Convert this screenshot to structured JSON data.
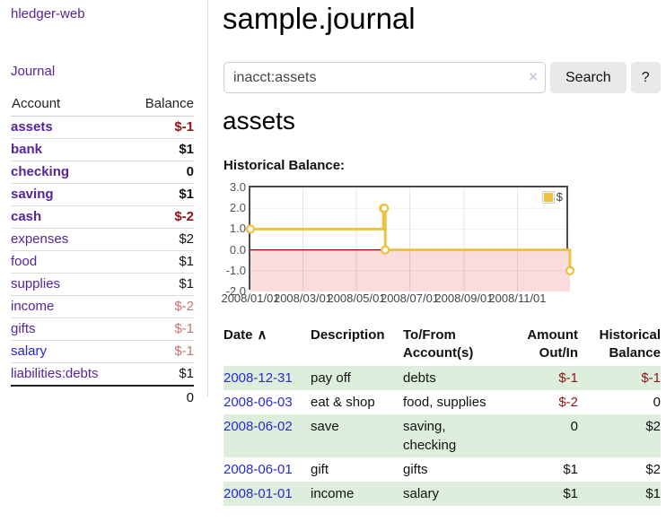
{
  "colors": {
    "link_purple": "#54259c",
    "link_blue": "#2323d9",
    "negative_strong": "#8b1515",
    "negative_muted": "#c87272",
    "row_green": "#ddeedd",
    "series_yellow": "#edc240",
    "negative_region_pink": "#fbdcdc",
    "zero_line_red": "#a40000"
  },
  "sidebar": {
    "brand": "hledger-web",
    "nav": {
      "journal": "Journal"
    },
    "table": {
      "account_header": "Account",
      "balance_header": "Balance",
      "rows": [
        {
          "account": "assets",
          "balance": "$-1"
        },
        {
          "account": "bank",
          "balance": "$1"
        },
        {
          "account": "checking",
          "balance": "0"
        },
        {
          "account": "saving",
          "balance": "$1"
        },
        {
          "account": "cash",
          "balance": "$-2"
        },
        {
          "account": "expenses",
          "balance": "$2"
        },
        {
          "account": "food",
          "balance": "$1"
        },
        {
          "account": "supplies",
          "balance": "$1"
        },
        {
          "account": "income",
          "balance": "$-2"
        },
        {
          "account": "gifts",
          "balance": "$-1"
        },
        {
          "account": "salary",
          "balance": "$-1"
        },
        {
          "account": "liabilities:debts",
          "balance": "$1"
        }
      ],
      "total": "0"
    }
  },
  "main": {
    "title": "sample.journal",
    "search": {
      "query": "inacct:assets",
      "clear": "×",
      "button": "Search",
      "help": "?"
    },
    "account_heading": "assets",
    "chart_label": "Historical Balance:"
  },
  "chart_data": {
    "type": "line",
    "title": "Historical Balance:",
    "style": "steps",
    "legend": {
      "label": "$",
      "position": "top-right"
    },
    "series": [
      {
        "name": "$",
        "color": "#edc240",
        "points": [
          [
            "2008/01/01",
            1
          ],
          [
            "2008/06/01",
            2
          ],
          [
            "2008/06/02",
            2
          ],
          [
            "2008/06/03",
            0
          ],
          [
            "2008/12/31",
            -1
          ]
        ]
      }
    ],
    "x_days": [
      0,
      152,
      153,
      154,
      365
    ],
    "xlim_days": [
      0,
      365
    ],
    "ylim": [
      -2,
      3
    ],
    "yticks": [
      {
        "label": "3.0",
        "v": 3
      },
      {
        "label": "2.0",
        "v": 2
      },
      {
        "label": "1.0",
        "v": 1
      },
      {
        "label": "0.0",
        "v": 0
      },
      {
        "label": "-1.0",
        "v": -1
      },
      {
        "label": "-2.0",
        "v": -2
      }
    ],
    "xticks": [
      {
        "label": "2008/01/01",
        "day": 0
      },
      {
        "label": "2008/03/01",
        "day": 60
      },
      {
        "label": "2008/05/01",
        "day": 121
      },
      {
        "label": "2008/07/01",
        "day": 182
      },
      {
        "label": "2008/09/01",
        "day": 244
      },
      {
        "label": "2008/11/01",
        "day": 305
      }
    ],
    "grid": true,
    "negative_fill": "#fbdcdc",
    "zero_line_color": "#a40000"
  },
  "register": {
    "headers": {
      "date": "Date",
      "sort_icon": "∧",
      "description": "Description",
      "accounts": "To/From\nAccount(s)",
      "amount": "Amount\nOut/In",
      "balance": "Historical\nBalance"
    },
    "rows": [
      {
        "date": "2008-12-31",
        "description": "pay off",
        "accounts": "debts",
        "amount": "$-1",
        "balance": "$-1"
      },
      {
        "date": "2008-06-03",
        "description": "eat & shop",
        "accounts": "food, supplies",
        "amount": "$-2",
        "balance": "0"
      },
      {
        "date": "2008-06-02",
        "description": "save",
        "accounts": "saving,\nchecking",
        "amount": "0",
        "balance": "$2"
      },
      {
        "date": "2008-06-01",
        "description": "gift",
        "accounts": "gifts",
        "amount": "$1",
        "balance": "$2"
      },
      {
        "date": "2008-01-01",
        "description": "income",
        "accounts": "salary",
        "amount": "$1",
        "balance": "$1"
      }
    ]
  }
}
